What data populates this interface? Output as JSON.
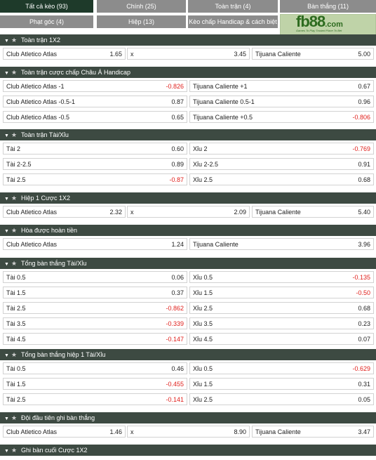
{
  "tabs": [
    {
      "label": "Tất cả kèo (93)",
      "active": true
    },
    {
      "label": "Chính (25)",
      "active": false
    },
    {
      "label": "Toàn trận (4)",
      "active": false
    },
    {
      "label": "Bàn thắng (11)",
      "active": false
    },
    {
      "label": "Phạt góc (4)",
      "active": false
    },
    {
      "label": "Hiệp (13)",
      "active": false
    },
    {
      "label": "Kèo chấp Handicap & cách biệt (3)",
      "active": false
    }
  ],
  "logo": {
    "brand": "fb88",
    "suffix": ".com",
    "tagline": "Games To Play  Trusted Place To Bet"
  },
  "sections": [
    {
      "title": "Toàn trận 1X2",
      "layout": "3",
      "rows": [
        [
          {
            "label": "Club Atletico Atlas",
            "odd": "1.65"
          },
          {
            "label": "x",
            "odd": "3.45"
          },
          {
            "label": "Tijuana Caliente",
            "odd": "5.00"
          }
        ]
      ]
    },
    {
      "title": "Toàn trận cược chấp Châu Á Handicap",
      "layout": "2",
      "rows": [
        [
          {
            "label": "Club Atletico Atlas -1",
            "odd": "-0.826"
          },
          {
            "label": "Tijuana Caliente +1",
            "odd": "0.67"
          }
        ],
        [
          {
            "label": "Club Atletico Atlas -0.5-1",
            "odd": "0.87"
          },
          {
            "label": "Tijuana Caliente 0.5-1",
            "odd": "0.96"
          }
        ],
        [
          {
            "label": "Club Atletico Atlas -0.5",
            "odd": "0.65"
          },
          {
            "label": "Tijuana Caliente +0.5",
            "odd": "-0.806"
          }
        ]
      ]
    },
    {
      "title": "Toàn trận Tài/Xỉu",
      "layout": "2",
      "rows": [
        [
          {
            "label": "Tài 2",
            "odd": "0.60"
          },
          {
            "label": "Xỉu 2",
            "odd": "-0.769"
          }
        ],
        [
          {
            "label": "Tài 2-2.5",
            "odd": "0.89"
          },
          {
            "label": "Xỉu 2-2.5",
            "odd": "0.91"
          }
        ],
        [
          {
            "label": "Tài 2.5",
            "odd": "-0.87"
          },
          {
            "label": "Xỉu 2.5",
            "odd": "0.68"
          }
        ]
      ]
    },
    {
      "title": "Hiệp 1 Cược 1X2",
      "layout": "3",
      "rows": [
        [
          {
            "label": "Club Atletico Atlas",
            "odd": "2.32"
          },
          {
            "label": "x",
            "odd": "2.09"
          },
          {
            "label": "Tijuana Caliente",
            "odd": "5.40"
          }
        ]
      ]
    },
    {
      "title": "Hòa được hoàn tiền",
      "layout": "2",
      "rows": [
        [
          {
            "label": "Club Atletico Atlas",
            "odd": "1.24"
          },
          {
            "label": "Tijuana Caliente",
            "odd": "3.96"
          }
        ]
      ]
    },
    {
      "title": "Tổng bàn thắng Tài/Xỉu",
      "layout": "2",
      "rows": [
        [
          {
            "label": "Tài 0.5",
            "odd": "0.06"
          },
          {
            "label": "Xỉu 0.5",
            "odd": "-0.135"
          }
        ],
        [
          {
            "label": "Tài 1.5",
            "odd": "0.37"
          },
          {
            "label": "Xỉu 1.5",
            "odd": "-0.50"
          }
        ],
        [
          {
            "label": "Tài 2.5",
            "odd": "-0.862"
          },
          {
            "label": "Xỉu 2.5",
            "odd": "0.68"
          }
        ],
        [
          {
            "label": "Tài 3.5",
            "odd": "-0.339"
          },
          {
            "label": "Xỉu 3.5",
            "odd": "0.23"
          }
        ],
        [
          {
            "label": "Tài 4.5",
            "odd": "-0.147"
          },
          {
            "label": "Xỉu 4.5",
            "odd": "0.07"
          }
        ]
      ]
    },
    {
      "title": "Tổng bàn thắng hiệp 1 Tài/Xỉu",
      "layout": "2",
      "rows": [
        [
          {
            "label": "Tài 0.5",
            "odd": "0.46"
          },
          {
            "label": "Xỉu 0.5",
            "odd": "-0.629"
          }
        ],
        [
          {
            "label": "Tài 1.5",
            "odd": "-0.455"
          },
          {
            "label": "Xỉu 1.5",
            "odd": "0.31"
          }
        ],
        [
          {
            "label": "Tài 2.5",
            "odd": "-0.141"
          },
          {
            "label": "Xỉu 2.5",
            "odd": "0.05"
          }
        ]
      ]
    },
    {
      "title": "Đội đầu tiên ghi bàn thắng",
      "layout": "3",
      "rows": [
        [
          {
            "label": "Club Atletico Atlas",
            "odd": "1.46"
          },
          {
            "label": "x",
            "odd": "8.90"
          },
          {
            "label": "Tijuana Caliente",
            "odd": "3.47"
          }
        ]
      ]
    },
    {
      "title": "Ghi bàn cuối Cược 1X2",
      "layout": "3",
      "rows": []
    }
  ],
  "icons": {
    "collapse": "chevron-down-icon",
    "favorite": "star-icon"
  },
  "colors": {
    "active_tab": "#1e3a2a",
    "tab": "#8c8c8c",
    "section_header": "#3d4a42",
    "negative_odd": "#e0201c"
  }
}
